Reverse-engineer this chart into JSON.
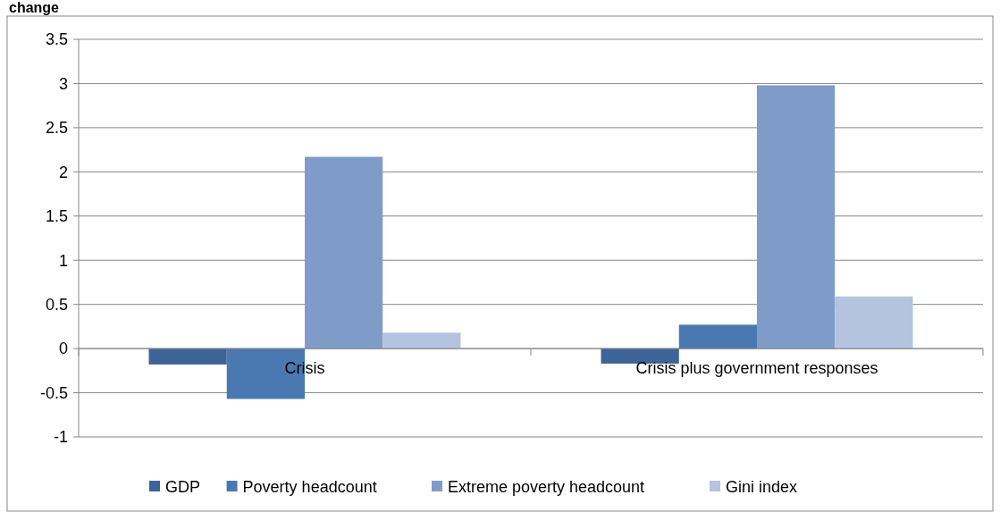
{
  "chart_data": {
    "type": "bar",
    "title": "change",
    "categories": [
      "Crisis",
      "Crisis plus government responses"
    ],
    "series": [
      {
        "name": "GDP",
        "color": "#3c6496",
        "values": [
          -0.18,
          -0.17
        ]
      },
      {
        "name": "Poverty headcount",
        "color": "#4a78b0",
        "values": [
          -0.57,
          0.27
        ]
      },
      {
        "name": "Extreme poverty headcount",
        "color": "#7f9cc8",
        "values": [
          2.17,
          2.98
        ]
      },
      {
        "name": "Gini index",
        "color": "#b4c3de",
        "values": [
          0.18,
          0.59
        ]
      }
    ],
    "ylim": [
      -1,
      3.5
    ],
    "yticks": [
      -1,
      -0.5,
      0,
      0.5,
      1,
      1.5,
      2,
      2.5,
      3,
      3.5
    ],
    "grid": "y",
    "legend": "bottom"
  }
}
